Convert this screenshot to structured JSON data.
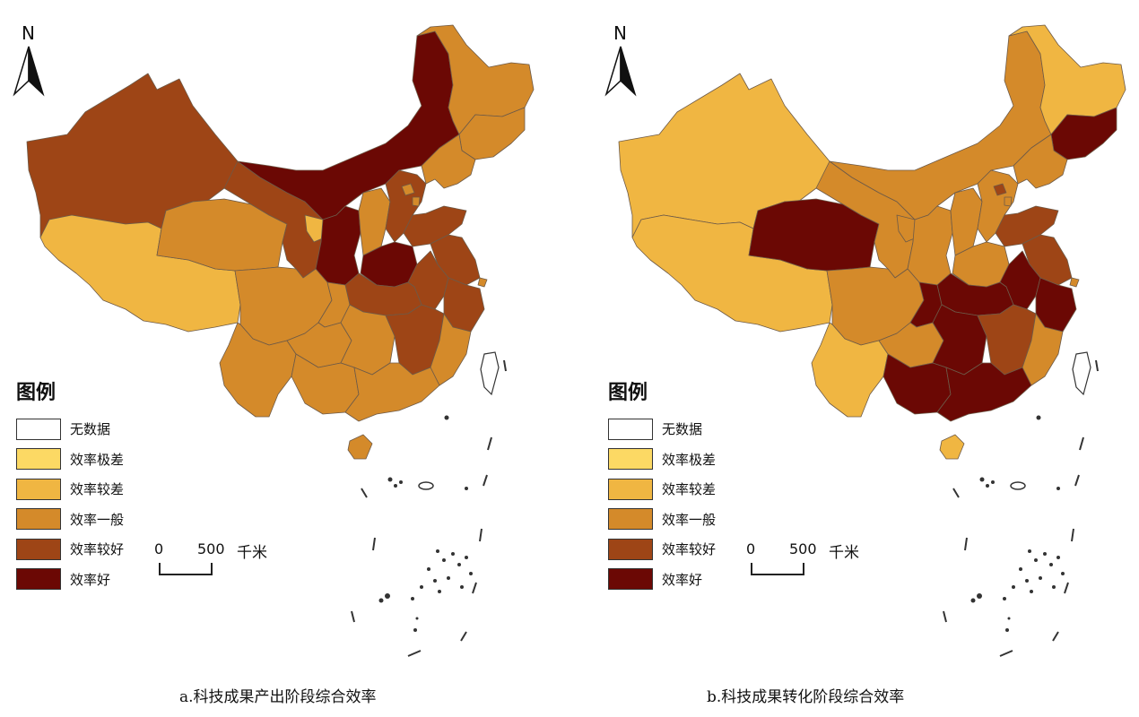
{
  "map_a": {
    "caption": "a.科技成果产出阶段综合效率",
    "north_label": "N",
    "legend": {
      "title": "图例",
      "items": [
        {
          "label": "无数据",
          "color": "#ffffff"
        },
        {
          "label": "效率极差",
          "color": "#fcd964"
        },
        {
          "label": "效率较差",
          "color": "#f0b642"
        },
        {
          "label": "效率一般",
          "color": "#d48a2a"
        },
        {
          "label": "效率较好",
          "color": "#9e4516"
        },
        {
          "label": "效率好",
          "color": "#6b0804"
        }
      ]
    },
    "scale": {
      "zero": "0",
      "distance": "500",
      "unit": "千米"
    }
  },
  "map_b": {
    "caption": "b.科技成果转化阶段综合效率",
    "north_label": "N",
    "legend": {
      "title": "图例",
      "items": [
        {
          "label": "无数据",
          "color": "#ffffff"
        },
        {
          "label": "效率极差",
          "color": "#fcd964"
        },
        {
          "label": "效率较差",
          "color": "#f0b642"
        },
        {
          "label": "效率一般",
          "color": "#d48a2a"
        },
        {
          "label": "效率较好",
          "color": "#9e4516"
        },
        {
          "label": "效率好",
          "color": "#6b0804"
        }
      ]
    },
    "scale": {
      "zero": "0",
      "distance": "500",
      "unit": "千米"
    }
  }
}
